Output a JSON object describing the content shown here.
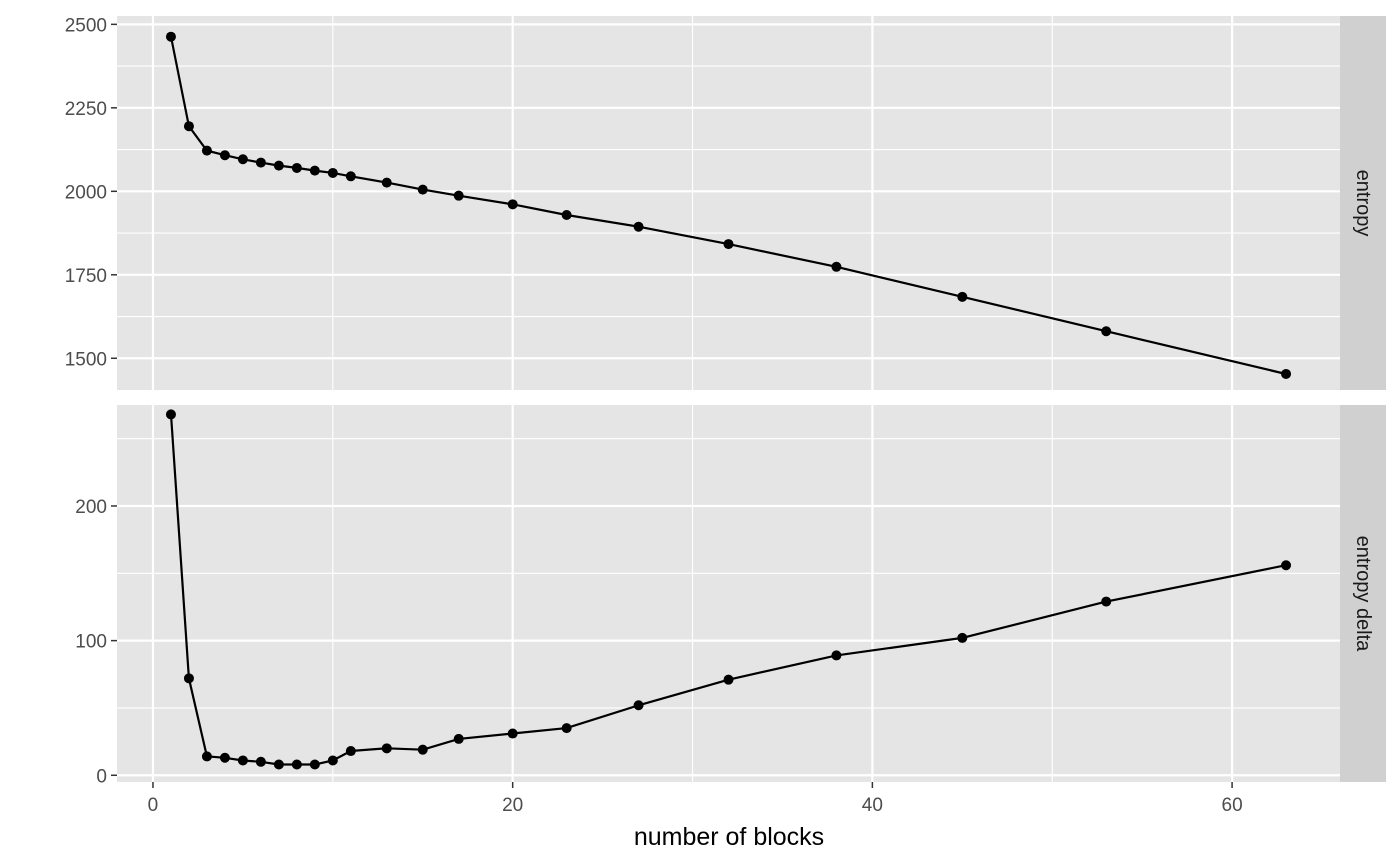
{
  "chart_data": {
    "type": "line",
    "xlabel": "number of blocks",
    "xlim": [
      -2,
      66
    ],
    "x_ticks": [
      0,
      20,
      40,
      60
    ],
    "x_minor": [
      10,
      30,
      50
    ],
    "colors": {
      "panel": "#e5e5e5",
      "grid": "#ffffff",
      "strip": "#d0d0d0",
      "series": "#000000",
      "tick": "#333333"
    },
    "facets": [
      {
        "label": "entropy",
        "ylim": [
          1405,
          2525
        ],
        "y_ticks": [
          1500,
          1750,
          2000,
          2250,
          2500
        ],
        "y_minor": [
          1625,
          1875,
          2125,
          2375
        ],
        "points": [
          [
            1,
            2463
          ],
          [
            2,
            2195
          ],
          [
            3,
            2122
          ],
          [
            4,
            2108
          ],
          [
            5,
            2096
          ],
          [
            6,
            2086
          ],
          [
            7,
            2077
          ],
          [
            8,
            2070
          ],
          [
            9,
            2062
          ],
          [
            10,
            2055
          ],
          [
            11,
            2045
          ],
          [
            13,
            2026
          ],
          [
            15,
            2005
          ],
          [
            17,
            1987
          ],
          [
            20,
            1961
          ],
          [
            23,
            1929
          ],
          [
            27,
            1894
          ],
          [
            32,
            1842
          ],
          [
            38,
            1774
          ],
          [
            45,
            1684
          ],
          [
            53,
            1581
          ],
          [
            63,
            1453
          ]
        ]
      },
      {
        "label": "entropy delta",
        "ylim": [
          -5,
          275
        ],
        "y_ticks": [
          0,
          100,
          200
        ],
        "y_minor": [
          50,
          150,
          250
        ],
        "points": [
          [
            1,
            268
          ],
          [
            2,
            72
          ],
          [
            3,
            14
          ],
          [
            4,
            13
          ],
          [
            5,
            11
          ],
          [
            6,
            10
          ],
          [
            7,
            8
          ],
          [
            8,
            8
          ],
          [
            9,
            8
          ],
          [
            10,
            11
          ],
          [
            11,
            18
          ],
          [
            13,
            20
          ],
          [
            15,
            19
          ],
          [
            17,
            27
          ],
          [
            20,
            31
          ],
          [
            23,
            35
          ],
          [
            27,
            52
          ],
          [
            32,
            71
          ],
          [
            38,
            89
          ],
          [
            45,
            102
          ],
          [
            53,
            129
          ],
          [
            63,
            156
          ]
        ]
      }
    ]
  }
}
